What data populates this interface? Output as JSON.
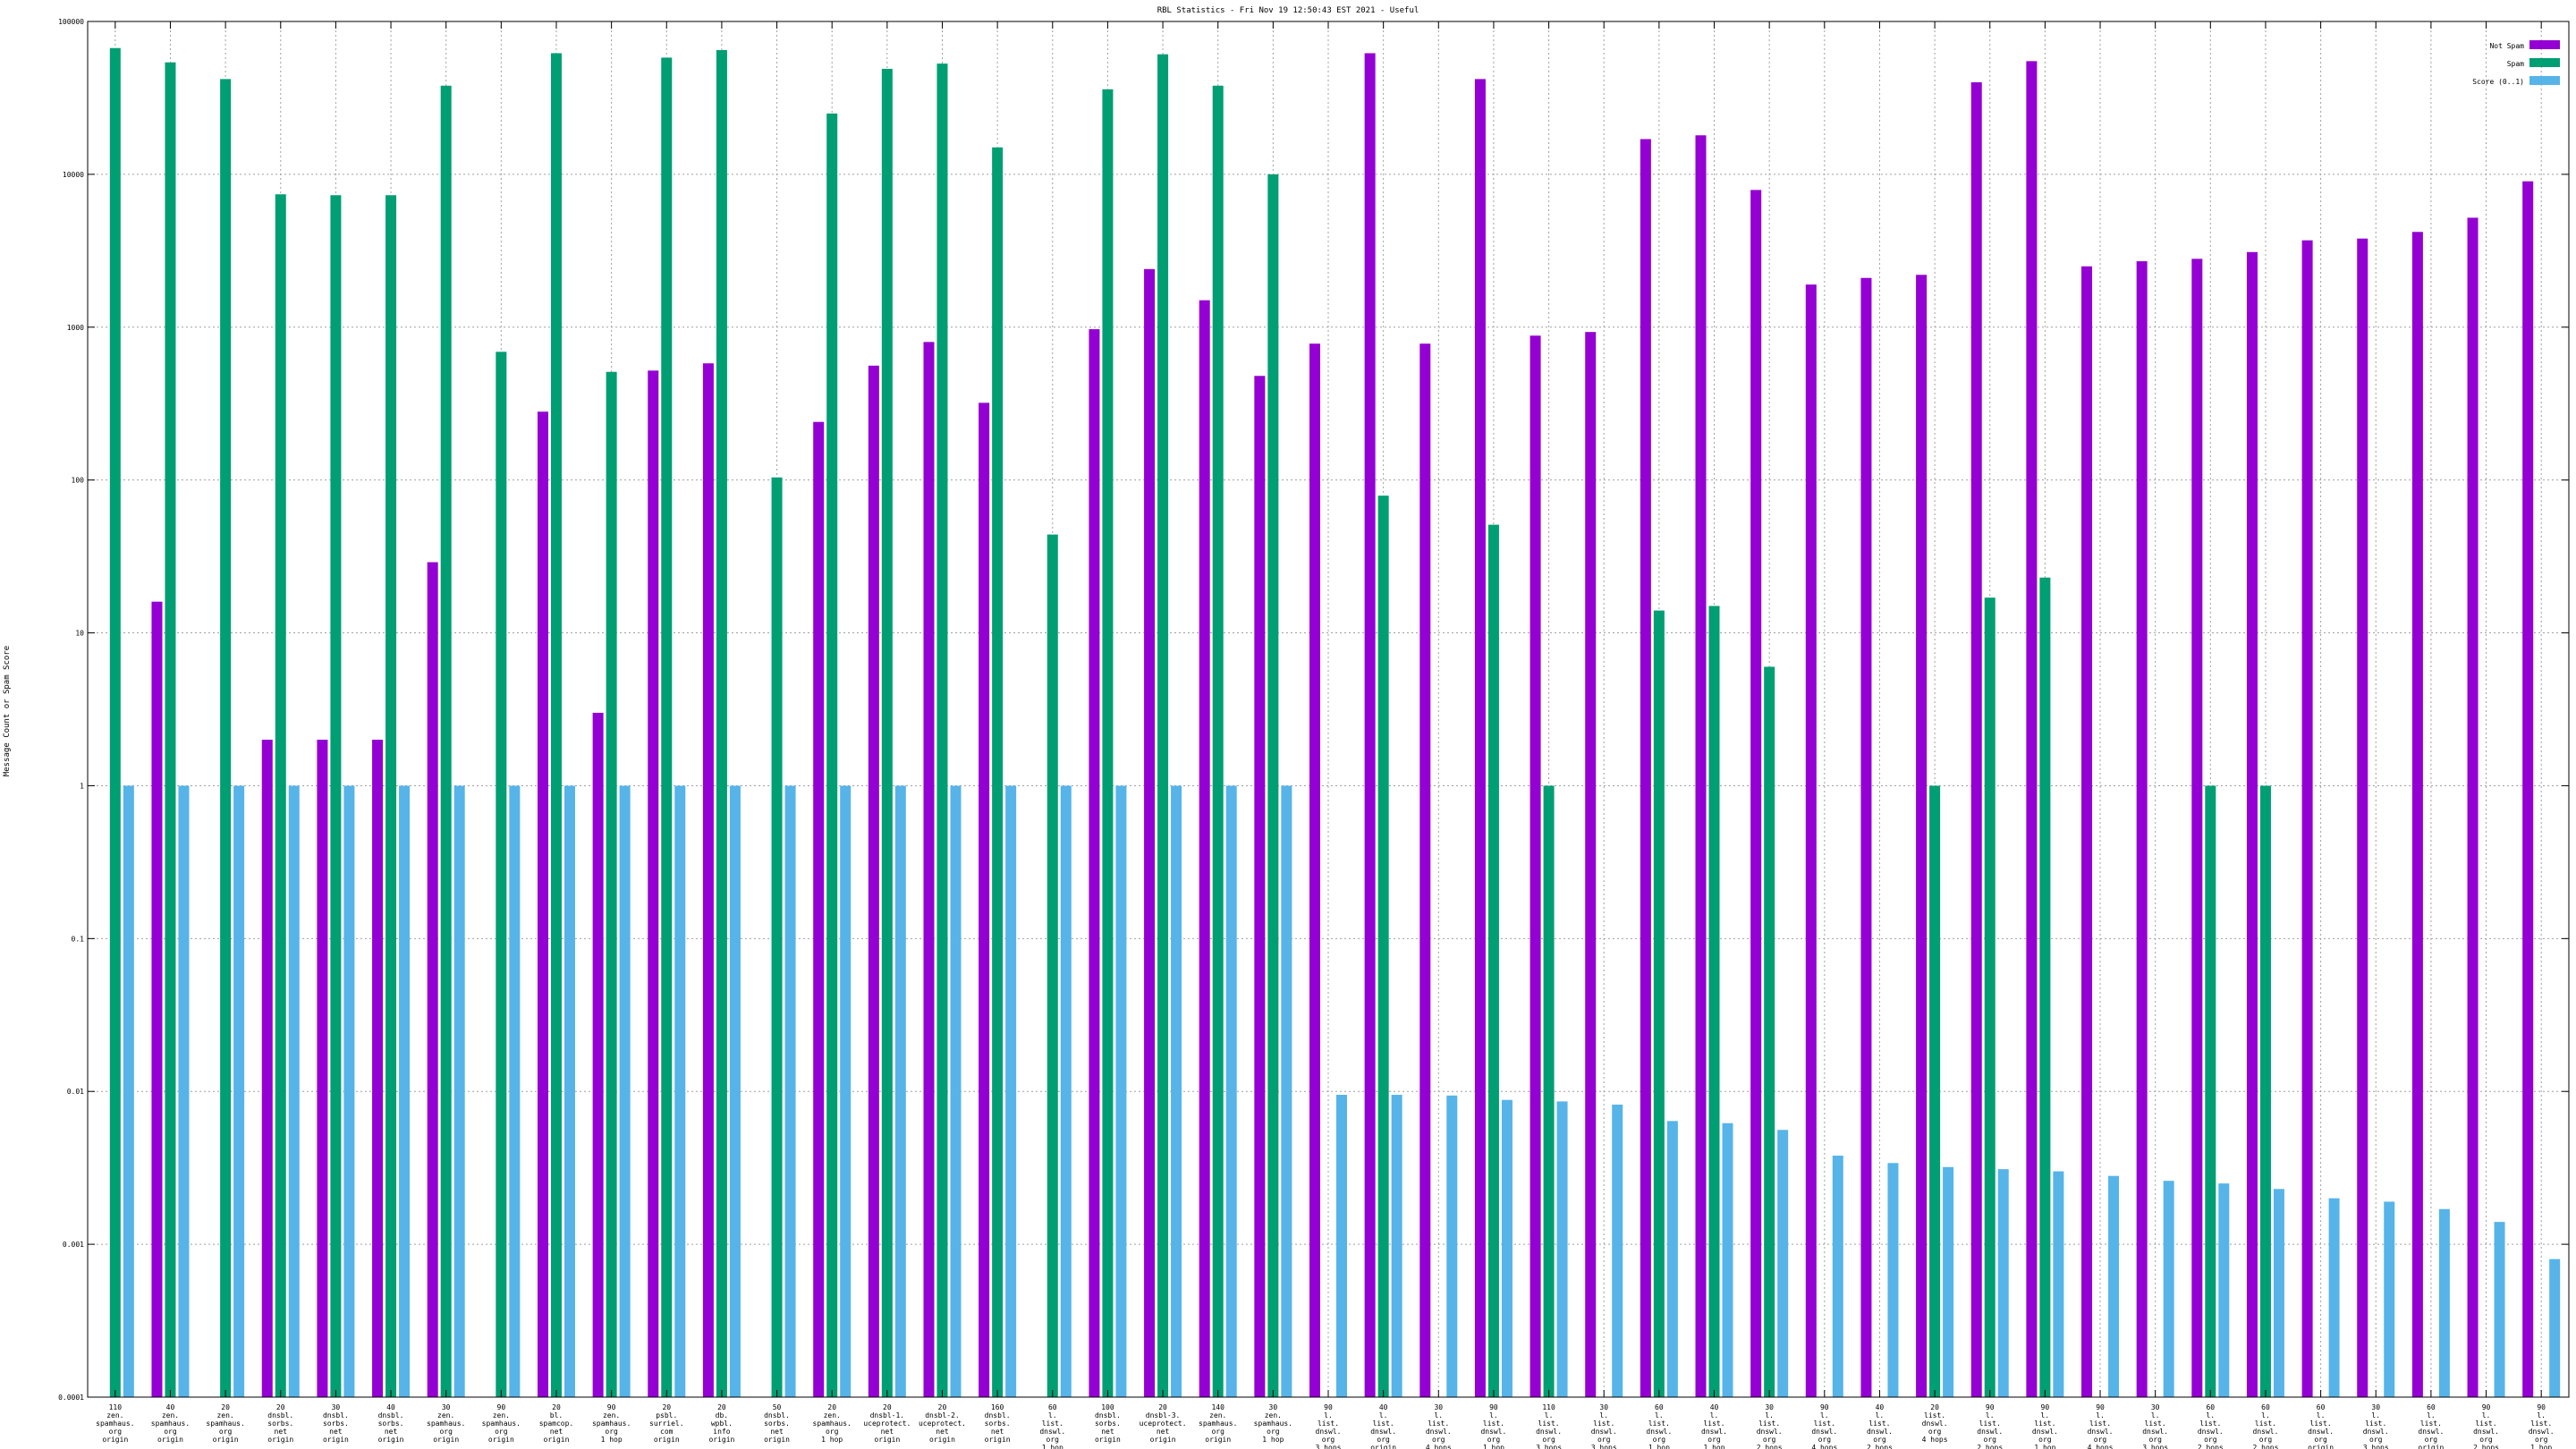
{
  "chart_data": {
    "type": "bar",
    "title": "RBL Statistics - Fri Nov 19 12:50:43 EST 2021 - Useful",
    "ylabel": "Message Count or Spam Score",
    "xlabel": "",
    "yscale": "log",
    "ylim": [
      0.0001,
      100000
    ],
    "yticks": [
      "100000",
      "10000",
      "1000",
      "100",
      "10",
      "1",
      "0.1",
      "0.01",
      "0.001",
      "0.0001"
    ],
    "grid": true,
    "legend_position": "top-right",
    "categories": [
      "110\nzen.\nspamhaus.\norg\norigin",
      "40\nzen.\nspamhaus.\norg\norigin",
      "20\nzen.\nspamhaus.\norg\norigin",
      "20\ndnsbl.\nsorbs.\nnet\norigin",
      "30\ndnsbl.\nsorbs.\nnet\norigin",
      "40\ndnsbl.\nsorbs.\nnet\norigin",
      "30\nzen.\nspamhaus.\norg\norigin",
      "90\nzen.\nspamhaus.\norg\norigin",
      "20\nbl.\nspamcop.\nnet\norigin",
      "90\nzen.\nspamhaus.\norg\n1 hop",
      "20\npsbl.\nsurriel.\ncom\norigin",
      "20\ndb.\nwpbl.\ninfo\norigin",
      "50\ndnsbl.\nsorbs.\nnet\norigin",
      "20\nzen.\nspamhaus.\norg\n1 hop",
      "20\ndnsbl-1.\nuceprotect.\nnet\norigin",
      "20\ndnsbl-2.\nuceprotect.\nnet\norigin",
      "160\ndnsbl.\nsorbs.\nnet\norigin",
      "60\nl.\nlist.\ndnswl.\norg\n1 hop",
      "100\ndnsbl.\nsorbs.\nnet\norigin",
      "20\ndnsbl-3.\nuceprotect.\nnet\norigin",
      "140\nzen.\nspamhaus.\norg\norigin",
      "30\nzen.\nspamhaus.\norg\n1 hop",
      "90\nl.\nlist.\ndnswl.\norg\n3 hops",
      "40\nl.\nlist.\ndnswl.\norg\norigin",
      "30\nl.\nlist.\ndnswl.\norg\n4 hops",
      "90\nl.\nlist.\ndnswl.\norg\n1 hop",
      "110\nl.\nlist.\ndnswl.\norg\n3 hops",
      "30\nl.\nlist.\ndnswl.\norg\n3 hops",
      "60\nl.\nlist.\ndnswl.\norg\n1 hop",
      "40\nl.\nlist.\ndnswl.\norg\n1 hop",
      "30\nl.\nlist.\ndnswl.\norg\n2 hops",
      "90\nl.\nlist.\ndnswl.\norg\n4 hops",
      "40\nl.\nlist.\ndnswl.\norg\n2 hops",
      "20\nlist.\ndnswl.\norg\n4 hops",
      "90\nl.\nlist.\ndnswl.\norg\n2 hops",
      "90\nl.\nlist.\ndnswl.\norg\n1 hop",
      "90\nl.\nlist.\ndnswl.\norg\n4 hops",
      "30\nl.\nlist.\ndnswl.\norg\n3 hops",
      "60\nl.\nlist.\ndnswl.\norg\n2 hops",
      "60\nl.\nlist.\ndnswl.\norg\n2 hops",
      "60\nl.\nlist.\ndnswl.\norg\norigin",
      "30\nl.\nlist.\ndnswl.\norg\n3 hops",
      "60\nl.\nlist.\ndnswl.\norg\norigin",
      "90\nl.\nlist.\ndnswl.\norg\n2 hops",
      "90\nl.\nlist.\ndnswl.\norg\n1 hop"
    ],
    "series": [
      {
        "name": "Not Spam",
        "color": "#9400d3",
        "values": [
          0.0001,
          16,
          0.0001,
          2,
          2,
          2,
          29,
          0.0001,
          280,
          3,
          520,
          580,
          0.0001,
          240,
          560,
          800,
          320,
          0.0001,
          970,
          2400,
          1500,
          480,
          780,
          62000,
          780,
          42000,
          880,
          930,
          17000,
          18000,
          7900,
          1900,
          2100,
          2200,
          40000,
          55000,
          2500,
          2700,
          2800,
          3100,
          3700,
          3800,
          4200,
          5200,
          9000
        ]
      },
      {
        "name": "Spam",
        "color": "#009e73",
        "values": [
          67000,
          54000,
          42000,
          7400,
          7300,
          7300,
          38000,
          690,
          62000,
          510,
          58000,
          65000,
          104,
          25000,
          49000,
          53000,
          15000,
          44,
          36000,
          61000,
          38000,
          10000,
          0.0001,
          79,
          0.0001,
          51,
          1,
          0.0001,
          14,
          15,
          6,
          0.0001,
          0.0001,
          1,
          17,
          23,
          0.0001,
          0.0001,
          1,
          1,
          0.0001,
          0.0001,
          0.0001,
          0.0001,
          0.0001
        ]
      },
      {
        "name": "Score (0..1)",
        "color": "#56b4e9",
        "values": [
          1,
          1,
          1,
          1,
          1,
          1,
          1,
          1,
          1,
          1,
          1,
          1,
          1,
          1,
          1,
          1,
          1,
          1,
          1,
          1,
          1,
          1,
          0.0095,
          0.0095,
          0.0094,
          0.0088,
          0.0086,
          0.0082,
          0.0064,
          0.0062,
          0.0056,
          0.0038,
          0.0034,
          0.0032,
          0.0031,
          0.003,
          0.0028,
          0.0026,
          0.0025,
          0.0023,
          0.002,
          0.0019,
          0.0017,
          0.0014,
          0.0008
        ]
      }
    ]
  }
}
